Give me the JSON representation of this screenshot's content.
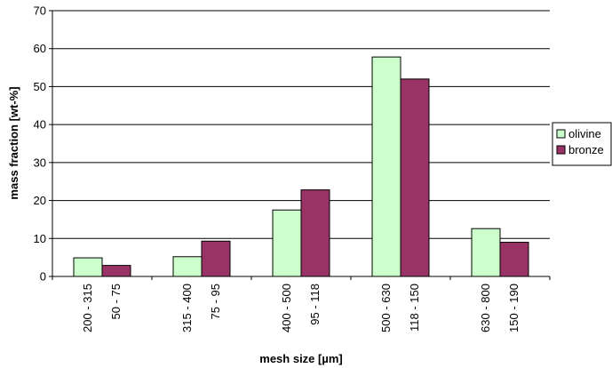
{
  "chart_data": {
    "type": "bar",
    "title": "",
    "xlabel": "mesh size [µm]",
    "ylabel": "mass fraction [wt-%]",
    "ylim": [
      0,
      70
    ],
    "yticks": [
      0,
      10,
      20,
      30,
      40,
      50,
      60,
      70
    ],
    "grid": "horizontal",
    "legend_position": "right",
    "series": [
      {
        "name": "olivine",
        "color": "#ccffcc",
        "categories": [
          "200 - 315",
          "315 - 400",
          "400 - 500",
          "500 - 630",
          "630 - 800"
        ],
        "values": [
          4.9,
          5.2,
          17.5,
          57.8,
          12.6
        ]
      },
      {
        "name": "bronze",
        "color": "#993366",
        "categories": [
          "50 - 75",
          "75 - 95",
          "95 - 118",
          "118 - 150",
          "150 - 190"
        ],
        "values": [
          2.9,
          9.3,
          22.8,
          52.0,
          9.0
        ]
      }
    ]
  }
}
